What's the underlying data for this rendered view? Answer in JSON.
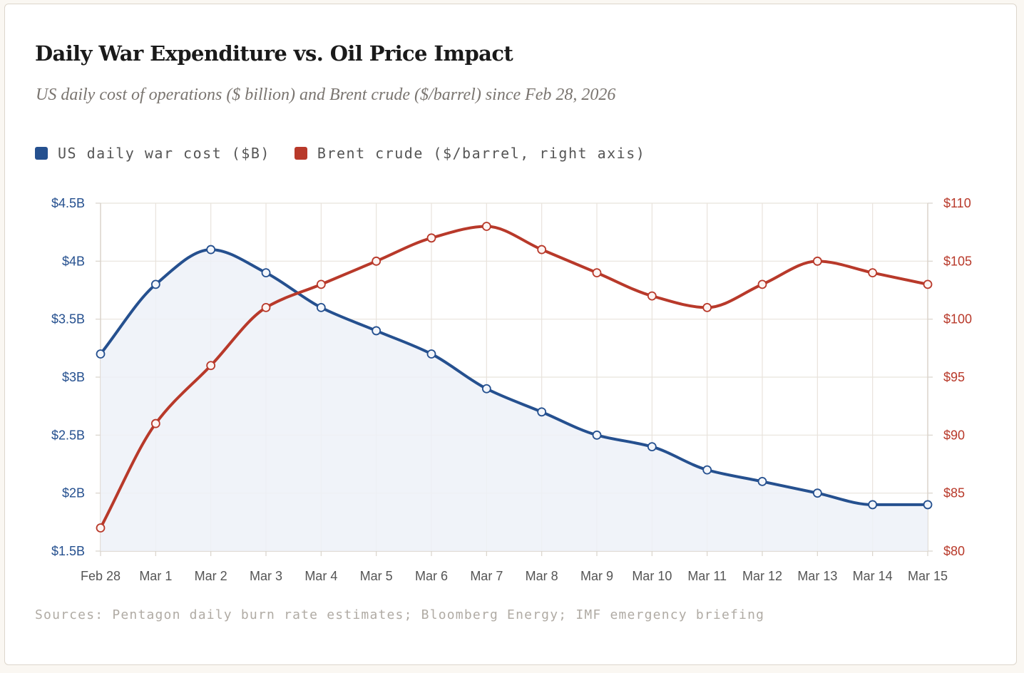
{
  "chart_data": {
    "type": "line",
    "title": "Daily War Expenditure vs. Oil Price Impact",
    "subtitle": "US daily cost of operations ($ billion) and Brent crude ($/barrel) since Feb 28, 2026",
    "categories": [
      "Feb 28",
      "Mar 1",
      "Mar 2",
      "Mar 3",
      "Mar 4",
      "Mar 5",
      "Mar 6",
      "Mar 7",
      "Mar 8",
      "Mar 9",
      "Mar 10",
      "Mar 11",
      "Mar 12",
      "Mar 13",
      "Mar 14",
      "Mar 15"
    ],
    "series": [
      {
        "name": "US daily war cost ($B)",
        "axis": "left",
        "color": "#25508f",
        "fill": "#edf1f8",
        "values": [
          3.2,
          3.8,
          4.1,
          3.9,
          3.6,
          3.4,
          3.2,
          2.9,
          2.7,
          2.5,
          2.4,
          2.2,
          2.1,
          2.0,
          1.9,
          1.9
        ]
      },
      {
        "name": "Brent crude ($/barrel, right axis)",
        "axis": "right",
        "color": "#b8392a",
        "values": [
          82,
          91,
          96,
          101,
          103,
          105,
          107,
          108,
          106,
          104,
          102,
          101,
          103,
          105,
          104,
          103
        ]
      }
    ],
    "y_left": {
      "ylim": [
        1.5,
        4.5
      ],
      "ticks": [
        1.5,
        2,
        2.5,
        3,
        3.5,
        4,
        4.5
      ],
      "tick_labels": [
        "$1.5B",
        "$2B",
        "$2.5B",
        "$3B",
        "$3.5B",
        "$4B",
        "$4.5B"
      ],
      "color": "#25508f"
    },
    "y_right": {
      "ylim": [
        80,
        110
      ],
      "ticks": [
        80,
        85,
        90,
        95,
        100,
        105,
        110
      ],
      "tick_labels": [
        "$80",
        "$85",
        "$90",
        "$95",
        "$100",
        "$105",
        "$110"
      ],
      "color": "#b8392a"
    },
    "xlabel": "",
    "grid": true,
    "legend_position": "top-left",
    "source": "Sources: Pentagon daily burn rate estimates; Bloomberg Energy; IMF emergency briefing"
  }
}
